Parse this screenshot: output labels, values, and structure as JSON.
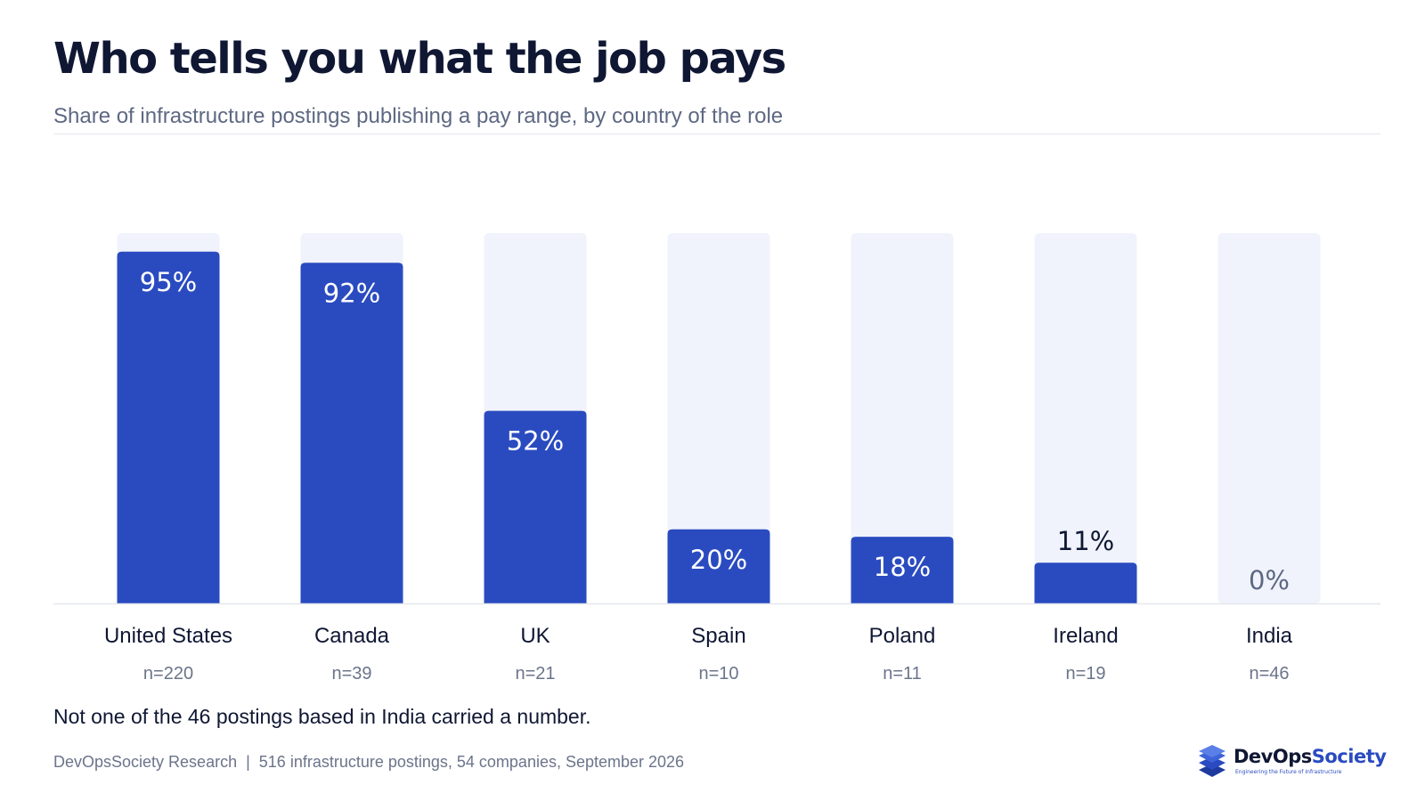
{
  "header": {
    "title": "Who tells you what the job pays",
    "subtitle": "Share of infrastructure postings publishing a pay range, by country of the role"
  },
  "chart_data": {
    "type": "bar",
    "categories": [
      "United States",
      "Canada",
      "UK",
      "Spain",
      "Poland",
      "Ireland",
      "India"
    ],
    "values": [
      95,
      92,
      52,
      20,
      18,
      11,
      0
    ],
    "value_labels": [
      "95%",
      "92%",
      "52%",
      "20%",
      "18%",
      "11%",
      "0%"
    ],
    "sample_sizes": [
      "n=220",
      "n=39",
      "n=21",
      "n=10",
      "n=11",
      "n=19",
      "n=46"
    ],
    "ylim": [
      0,
      100
    ],
    "unit": "%",
    "grid": false,
    "colors": {
      "bar": "#2a4bc0",
      "track": "#f0f3fb",
      "label_inside": "#ffffff",
      "label_outside": "#0f1733",
      "label_zero": "#5d6882",
      "axis": "#e3e7ee"
    }
  },
  "note": "Not one of the 46 postings based in India carried a number.",
  "footer": {
    "source": "DevOpsSociety Research",
    "separator": "|",
    "details": "516 infrastructure postings, 54 companies, September 2026"
  },
  "brand": {
    "name_part1": "DevOps",
    "name_part2": "Society",
    "tagline": "Engineering the Future of Infrastructure",
    "icon": "stacked-layers-icon",
    "accent_color": "#2a4bc0"
  }
}
